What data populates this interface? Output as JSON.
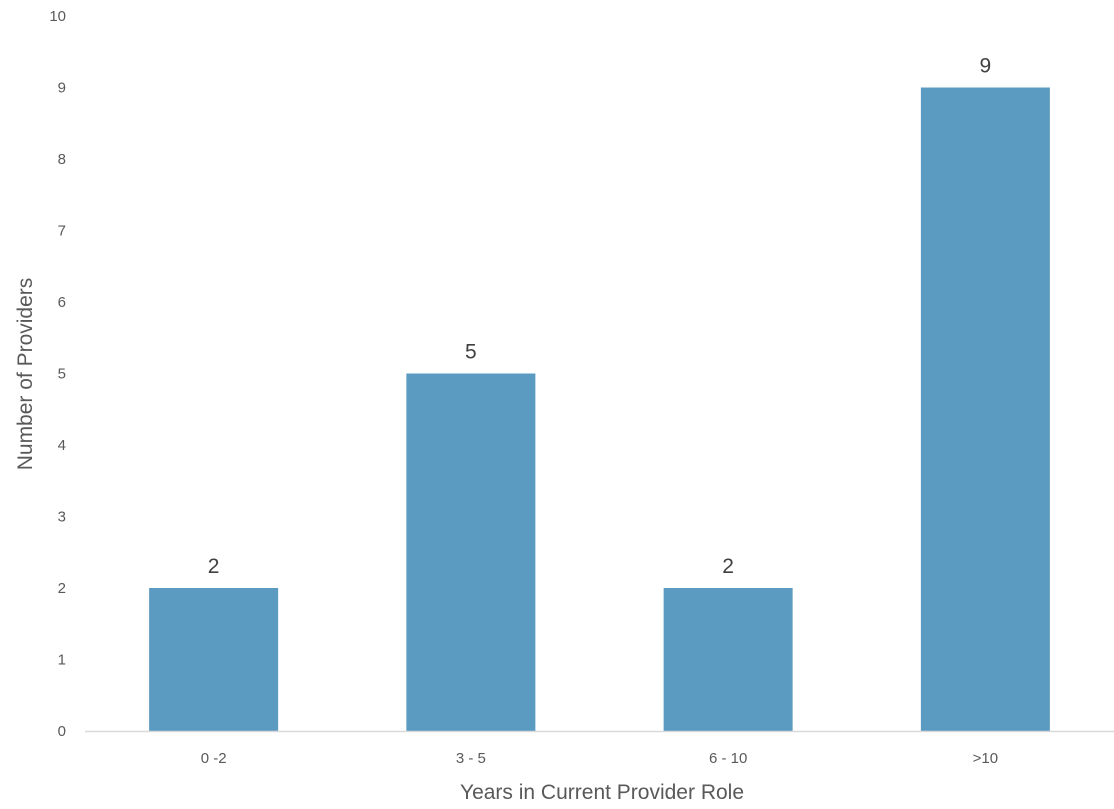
{
  "chart_data": {
    "type": "bar",
    "title": "",
    "xlabel": "Years in Current Provider Role",
    "ylabel": "Number of Providers",
    "categories": [
      "0 -2",
      "3 - 5",
      "6 - 10",
      ">10"
    ],
    "values": [
      2,
      5,
      2,
      9
    ],
    "data_labels": [
      "2",
      "5",
      "2",
      "9"
    ],
    "ylim": [
      0,
      10
    ],
    "yticks": [
      0,
      1,
      2,
      3,
      4,
      5,
      6,
      7,
      8,
      9,
      10
    ],
    "grid": false,
    "legend": "none",
    "colors": {
      "bar": "#5b9bc1",
      "axis_line": "#d9d9d9",
      "tick_text": "#595959",
      "data_label_text": "#404040"
    }
  }
}
